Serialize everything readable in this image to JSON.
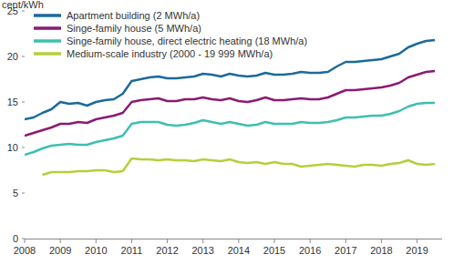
{
  "chart_data": {
    "type": "line",
    "y_label": "cent/kWh",
    "x": [
      2008.0,
      2008.25,
      2008.5,
      2008.75,
      2009.0,
      2009.25,
      2009.5,
      2009.75,
      2010.0,
      2010.25,
      2010.5,
      2010.75,
      2011.0,
      2011.25,
      2011.5,
      2011.75,
      2012.0,
      2012.25,
      2012.5,
      2012.75,
      2013.0,
      2013.25,
      2013.5,
      2013.75,
      2014.0,
      2014.25,
      2014.5,
      2014.75,
      2015.0,
      2015.25,
      2015.5,
      2015.75,
      2016.0,
      2016.25,
      2016.5,
      2016.75,
      2017.0,
      2017.25,
      2017.5,
      2017.75,
      2018.0,
      2018.25,
      2018.5,
      2018.75,
      2019.0,
      2019.25,
      2019.5
    ],
    "series": [
      {
        "name": "Apartment building (2 MWh/a)",
        "color": "#1b6a9c",
        "values": [
          13.1,
          13.3,
          13.8,
          14.2,
          15.0,
          14.8,
          14.9,
          14.6,
          15.0,
          15.2,
          15.3,
          15.9,
          17.3,
          17.5,
          17.7,
          17.8,
          17.6,
          17.6,
          17.7,
          17.8,
          18.1,
          18.0,
          17.8,
          18.1,
          17.9,
          17.8,
          17.9,
          18.2,
          18.0,
          18.0,
          18.1,
          18.3,
          18.2,
          18.2,
          18.3,
          18.9,
          19.4,
          19.4,
          19.5,
          19.6,
          19.7,
          20.0,
          20.3,
          21.0,
          21.4,
          21.7,
          21.8
        ]
      },
      {
        "name": "Singe-family house (5 MWh/a)",
        "color": "#8b1a73",
        "values": [
          11.3,
          11.6,
          11.9,
          12.2,
          12.6,
          12.6,
          12.8,
          12.7,
          13.1,
          13.3,
          13.5,
          13.8,
          15.0,
          15.2,
          15.3,
          15.4,
          15.1,
          15.1,
          15.3,
          15.3,
          15.5,
          15.3,
          15.2,
          15.4,
          15.1,
          15.0,
          15.2,
          15.5,
          15.2,
          15.2,
          15.3,
          15.4,
          15.3,
          15.3,
          15.5,
          15.9,
          16.3,
          16.3,
          16.4,
          16.5,
          16.6,
          16.8,
          17.1,
          17.7,
          18.0,
          18.3,
          18.4
        ]
      },
      {
        "name": "Singe-family house, direct electric heating (18 MWh/a)",
        "color": "#3dbfb2",
        "values": [
          9.2,
          9.5,
          9.9,
          10.2,
          10.3,
          10.4,
          10.3,
          10.3,
          10.6,
          10.8,
          11.0,
          11.3,
          12.6,
          12.8,
          12.8,
          12.8,
          12.5,
          12.4,
          12.5,
          12.7,
          13.0,
          12.8,
          12.6,
          12.8,
          12.6,
          12.4,
          12.5,
          12.8,
          12.6,
          12.6,
          12.6,
          12.8,
          12.7,
          12.7,
          12.8,
          13.0,
          13.3,
          13.3,
          13.4,
          13.5,
          13.5,
          13.7,
          14.0,
          14.5,
          14.8,
          14.9,
          14.9
        ]
      },
      {
        "name": "Medium-scale industry (2000 - 19 999 MWh/a)",
        "color": "#b5cf3c",
        "values": [
          null,
          null,
          7.0,
          7.3,
          7.3,
          7.3,
          7.4,
          7.4,
          7.5,
          7.5,
          7.3,
          7.4,
          8.8,
          8.7,
          8.7,
          8.6,
          8.7,
          8.6,
          8.6,
          8.5,
          8.7,
          8.6,
          8.5,
          8.7,
          8.4,
          8.3,
          8.4,
          8.2,
          8.4,
          8.2,
          8.2,
          7.9,
          8.0,
          8.1,
          8.2,
          8.1,
          8.0,
          7.9,
          8.1,
          8.1,
          8.0,
          8.2,
          8.3,
          8.6,
          8.2,
          8.1,
          8.2
        ]
      }
    ],
    "xlim": [
      2008,
      2019.7
    ],
    "xticks": [
      2008,
      2009,
      2010,
      2011,
      2012,
      2013,
      2014,
      2015,
      2016,
      2017,
      2018,
      2019
    ],
    "ylim": [
      0,
      25
    ],
    "yticks": [
      0,
      5,
      10,
      15,
      20,
      25
    ],
    "grid": false,
    "legend": "top-left"
  }
}
